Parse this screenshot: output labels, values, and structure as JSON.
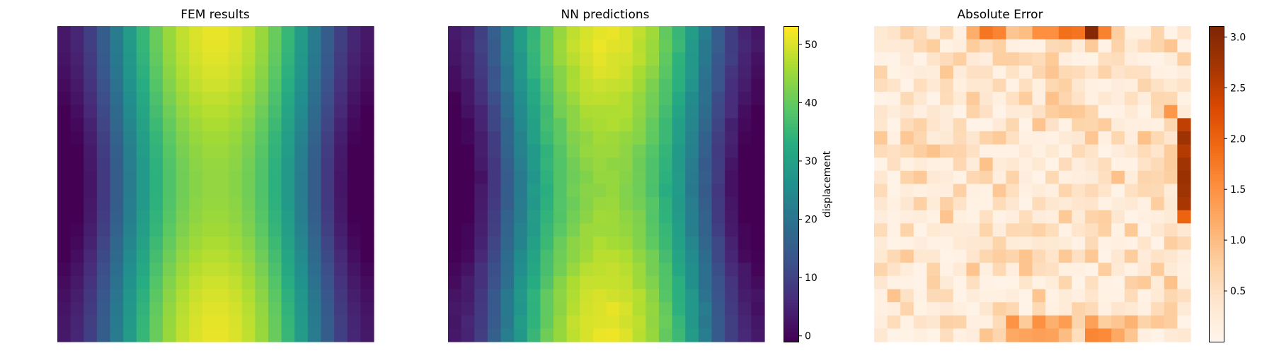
{
  "figure": {
    "background": "#ffffff"
  },
  "chart_data": [
    {
      "type": "heatmap",
      "title": "FEM results",
      "grid": [
        24,
        24
      ],
      "colormap": "viridis",
      "axes_visible": false,
      "value_range": [
        -1,
        53
      ],
      "field_model": "u(x,y) = 26 - 24.5*cos(2*pi*(x+0.5)/24) - 2.5*cos(4*pi*(x+0.5)/24) + 3.5*cos(2*pi*(y+0.5)/24)"
    },
    {
      "type": "heatmap",
      "title": "NN predictions",
      "grid": [
        24,
        24
      ],
      "colormap": "viridis",
      "axes_visible": false,
      "value_range": [
        -1,
        53
      ],
      "colorbar": {
        "label": "displacement",
        "ticks": [
          0,
          10,
          20,
          30,
          40,
          50
        ],
        "range": [
          -1,
          53
        ]
      }
    },
    {
      "type": "heatmap",
      "title": "Absolute Error",
      "grid": [
        24,
        24
      ],
      "colormap": "oranges",
      "axes_visible": false,
      "value_range": [
        0,
        3.1
      ],
      "colorbar": {
        "ticks": [
          0.5,
          1.0,
          1.5,
          2.0,
          2.5,
          3.0
        ],
        "tick_labels": [
          "0.5",
          "1.0",
          "1.5",
          "2.0",
          "2.5",
          "3.0"
        ],
        "range": [
          0,
          3.1
        ]
      }
    }
  ]
}
